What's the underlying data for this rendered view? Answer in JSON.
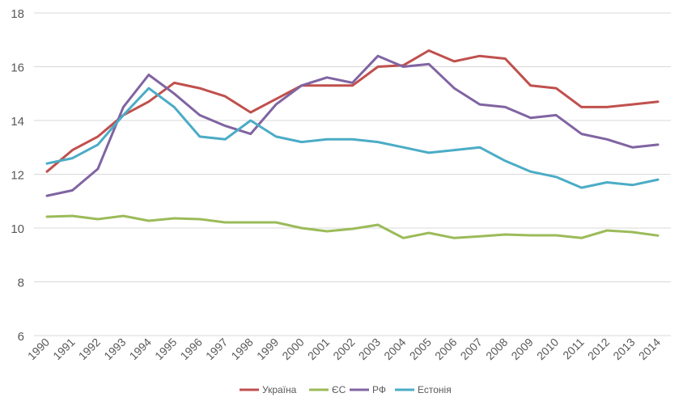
{
  "chart_data": {
    "type": "line",
    "title": "",
    "xlabel": "",
    "ylabel": "",
    "ylim": [
      6,
      18
    ],
    "yticks": [
      6,
      8,
      10,
      12,
      14,
      16,
      18
    ],
    "grid": true,
    "legend_position": "bottom",
    "categories": [
      "1990",
      "1991",
      "1992",
      "1993",
      "1994",
      "1995",
      "1996",
      "1997",
      "1998",
      "1999",
      "2000",
      "2001",
      "2002",
      "2003",
      "2004",
      "2005",
      "2006",
      "2007",
      "2008",
      "2009",
      "2010",
      "2011",
      "2012",
      "2013",
      "2014"
    ],
    "series": [
      {
        "name": "Україна",
        "color": "#c0504d",
        "values": [
          12.1,
          12.9,
          13.4,
          14.2,
          14.7,
          15.4,
          15.2,
          14.9,
          14.3,
          14.8,
          15.3,
          15.3,
          15.3,
          16.0,
          16.05,
          16.6,
          16.2,
          16.4,
          16.3,
          15.3,
          15.2,
          14.5,
          14.5,
          14.6,
          14.7
        ]
      },
      {
        "name": "ЄС",
        "color": "#9bbb59",
        "values": [
          10.42,
          10.45,
          10.33,
          10.45,
          10.27,
          10.36,
          10.33,
          10.21,
          10.21,
          10.21,
          10.0,
          9.88,
          9.97,
          10.12,
          9.63,
          9.82,
          9.63,
          9.69,
          9.76,
          9.73,
          9.73,
          9.63,
          9.91,
          9.85,
          9.72
        ]
      },
      {
        "name": "РФ",
        "color": "#8064a2",
        "values": [
          11.2,
          11.4,
          12.2,
          14.5,
          15.7,
          15.0,
          14.2,
          13.8,
          13.5,
          14.6,
          15.3,
          15.6,
          15.4,
          16.4,
          16.0,
          16.1,
          15.2,
          14.6,
          14.5,
          14.1,
          14.2,
          13.5,
          13.3,
          13.0,
          13.1
        ]
      },
      {
        "name": "Естонія",
        "color": "#4bacc6",
        "values": [
          12.4,
          12.6,
          13.1,
          14.2,
          15.2,
          14.5,
          13.4,
          13.3,
          14.0,
          13.4,
          13.2,
          13.3,
          13.3,
          13.2,
          13.0,
          12.8,
          12.9,
          13.0,
          12.5,
          12.1,
          11.9,
          11.5,
          11.7,
          11.6,
          11.8
        ]
      }
    ]
  }
}
